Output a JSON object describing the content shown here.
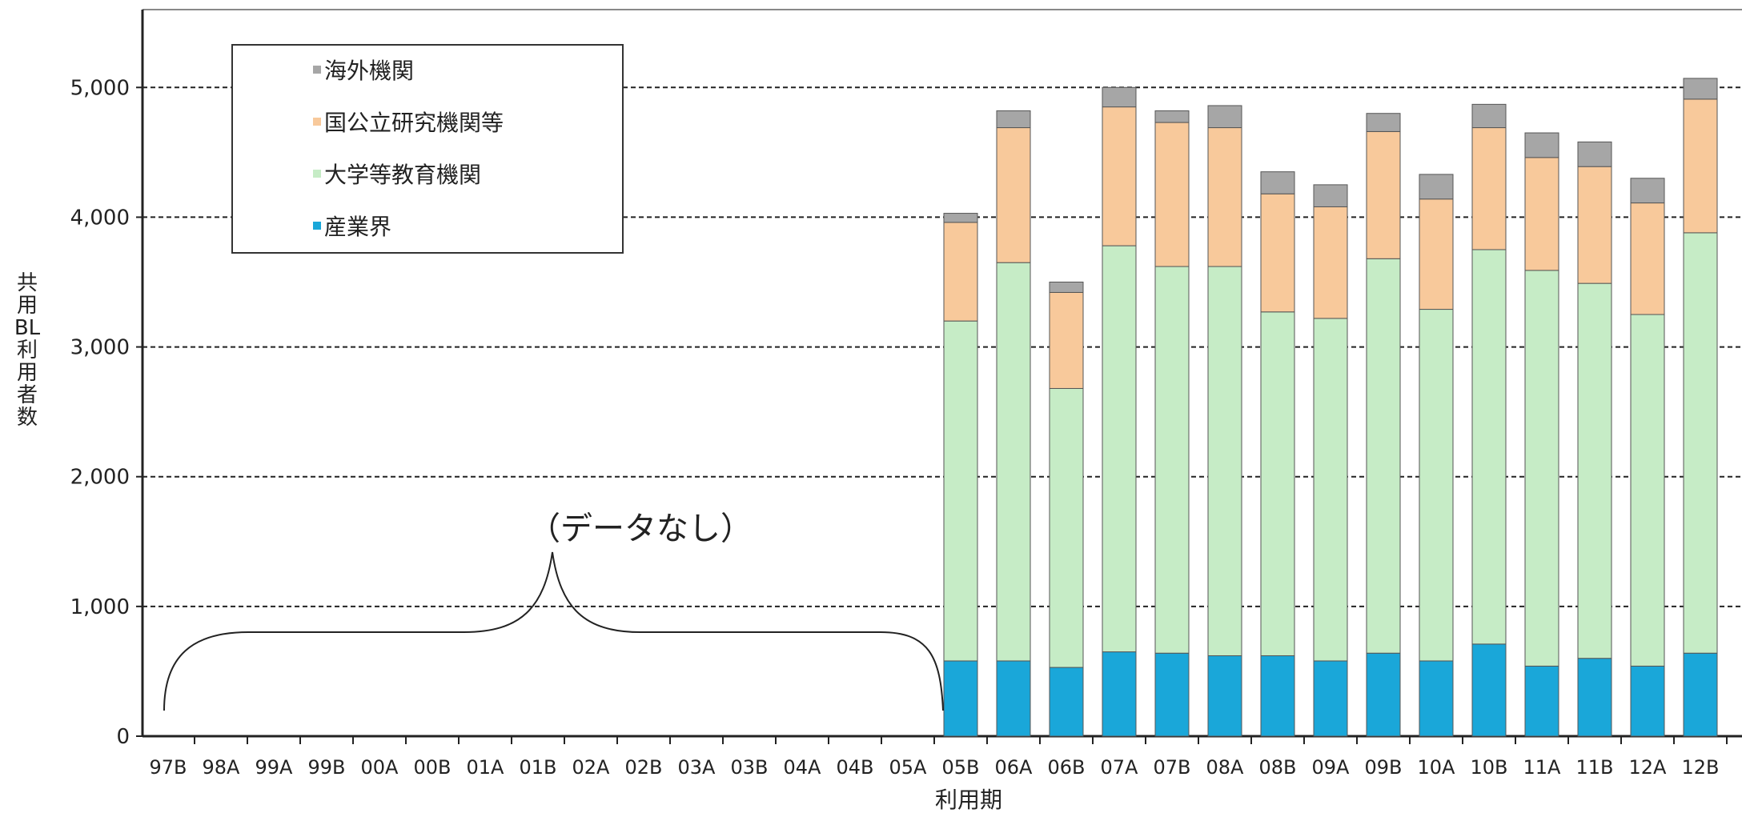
{
  "chart_data": {
    "type": "bar",
    "stacked": true,
    "categories": [
      "97B",
      "98A",
      "99A",
      "99B",
      "00A",
      "00B",
      "01A",
      "01B",
      "02A",
      "02B",
      "03A",
      "03B",
      "04A",
      "04B",
      "05A",
      "05B",
      "06A",
      "06B",
      "07A",
      "07B",
      "08A",
      "08B",
      "09A",
      "09B",
      "10A",
      "10B",
      "11A",
      "11B",
      "12A",
      "12B"
    ],
    "series": [
      {
        "name": "産業界",
        "color": "#1aa7d9",
        "values": [
          null,
          null,
          null,
          null,
          null,
          null,
          null,
          null,
          null,
          null,
          null,
          null,
          null,
          null,
          null,
          580,
          580,
          530,
          650,
          640,
          620,
          620,
          580,
          640,
          580,
          710,
          540,
          600,
          540,
          640
        ]
      },
      {
        "name": "大学等教育機関",
        "color": "#c6ecc6",
        "values": [
          null,
          null,
          null,
          null,
          null,
          null,
          null,
          null,
          null,
          null,
          null,
          null,
          null,
          null,
          null,
          2620,
          3070,
          2150,
          3130,
          2980,
          3000,
          2650,
          2640,
          3040,
          2710,
          3040,
          3050,
          2890,
          2710,
          3240
        ]
      },
      {
        "name": "国公立研究機関等",
        "color": "#f8c99b",
        "values": [
          null,
          null,
          null,
          null,
          null,
          null,
          null,
          null,
          null,
          null,
          null,
          null,
          null,
          null,
          null,
          760,
          1040,
          740,
          1070,
          1110,
          1070,
          910,
          860,
          980,
          850,
          940,
          870,
          900,
          860,
          1030
        ]
      },
      {
        "name": "海外機関",
        "color": "#a6a6a6",
        "values": [
          null,
          null,
          null,
          null,
          null,
          null,
          null,
          null,
          null,
          null,
          null,
          null,
          null,
          null,
          null,
          70,
          130,
          80,
          150,
          90,
          170,
          170,
          170,
          140,
          190,
          180,
          190,
          190,
          190,
          160
        ]
      }
    ],
    "legend_order": [
      "海外機関",
      "国公立研究機関等",
      "大学等教育機関",
      "産業界"
    ],
    "xlabel": "利用期",
    "ylabel": "共用BL利用者数",
    "ylim": [
      0,
      5600
    ],
    "yticks": [
      0,
      1000,
      2000,
      3000,
      4000,
      5000
    ],
    "ytick_labels": [
      "0",
      "1,000",
      "2,000",
      "3,000",
      "4,000",
      "5,000"
    ],
    "grid": "horizontal dashed",
    "legend_position": "top-left",
    "annotation": "（データなし）"
  }
}
